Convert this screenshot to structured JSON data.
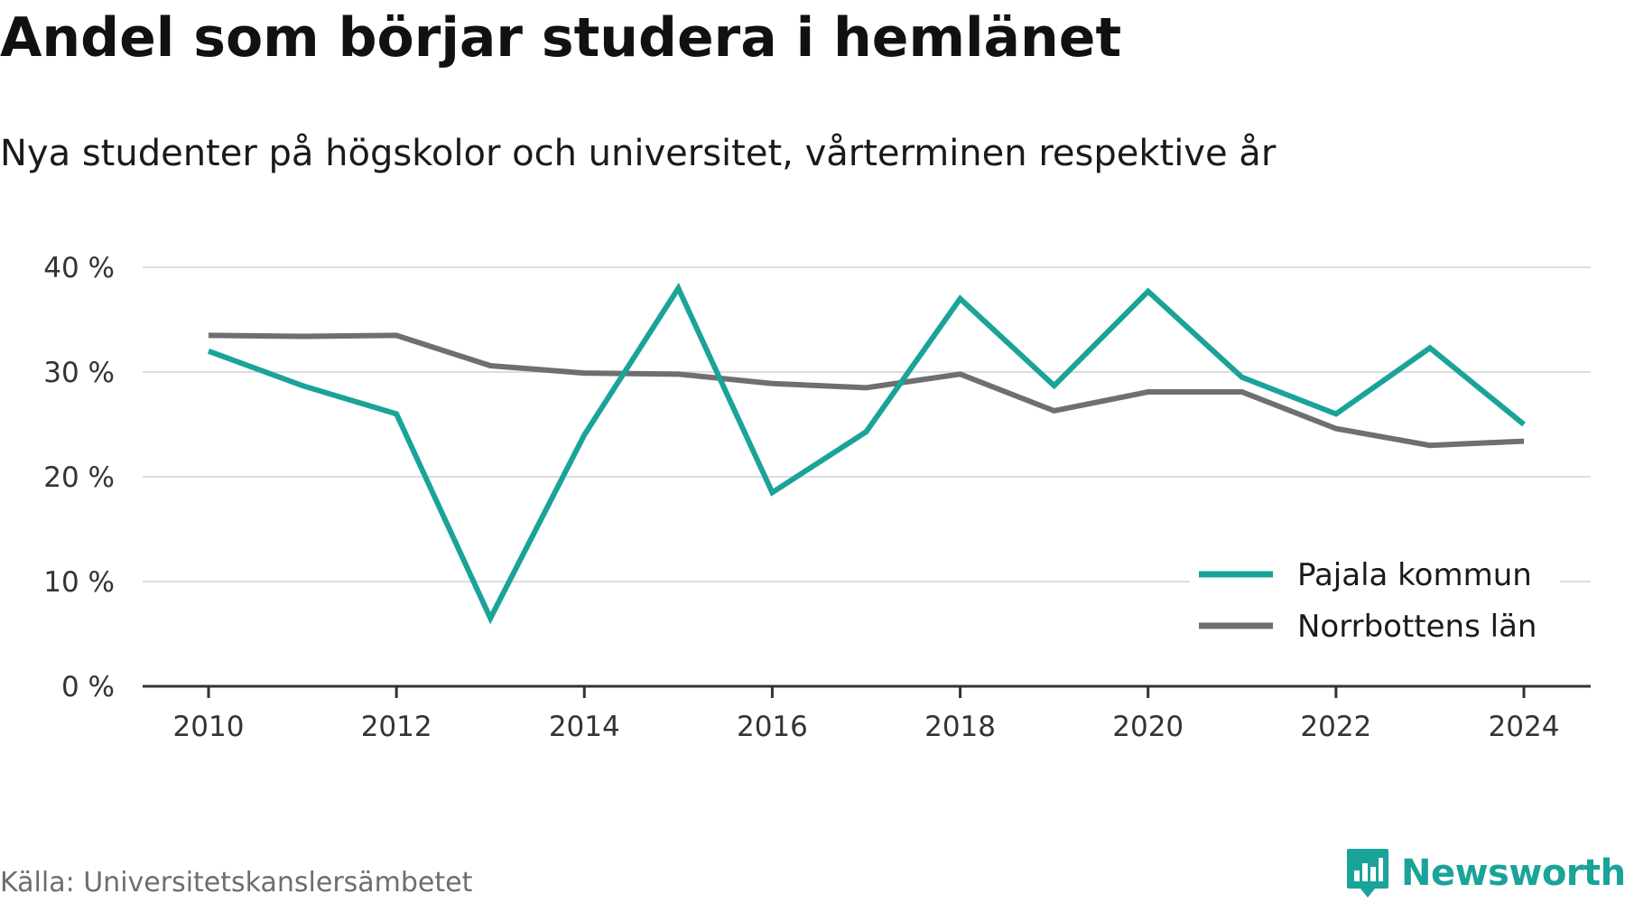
{
  "header": {
    "title": "Andel som börjar studera i hemlänet",
    "subtitle": "Nya studenter på högskolor och universitet, vårterminen respektive år"
  },
  "footer": {
    "source": "Källa: Universitetskanslersämbetet",
    "brand": "Newsworthy"
  },
  "colors": {
    "pajala": "#1aa399",
    "norrbotten": "#6f6e74",
    "grid": "#dddddd",
    "axis": "#333333",
    "brand": "#1aa399"
  },
  "chart_data": {
    "type": "line",
    "x": [
      2010,
      2011,
      2012,
      2013,
      2014,
      2015,
      2016,
      2017,
      2018,
      2019,
      2020,
      2021,
      2022,
      2023,
      2024
    ],
    "x_ticks": [
      "2010",
      "2012",
      "2014",
      "2016",
      "2018",
      "2020",
      "2022",
      "2024"
    ],
    "y_ticks": [
      "0 %",
      "10 %",
      "20 %",
      "30 %",
      "40 %"
    ],
    "ylim": [
      0,
      40
    ],
    "grid": true,
    "legend_position": "bottom-right",
    "series": [
      {
        "name": "Pajala kommun",
        "values": [
          32.0,
          28.7,
          26.0,
          6.5,
          24.0,
          38.0,
          18.5,
          24.3,
          37.0,
          28.7,
          37.7,
          29.5,
          26.0,
          32.3,
          25.0
        ]
      },
      {
        "name": "Norrbottens län",
        "values": [
          33.5,
          33.4,
          33.5,
          30.6,
          29.9,
          29.8,
          28.9,
          28.5,
          29.8,
          26.3,
          28.1,
          28.1,
          24.6,
          23.0,
          23.4
        ]
      }
    ]
  }
}
